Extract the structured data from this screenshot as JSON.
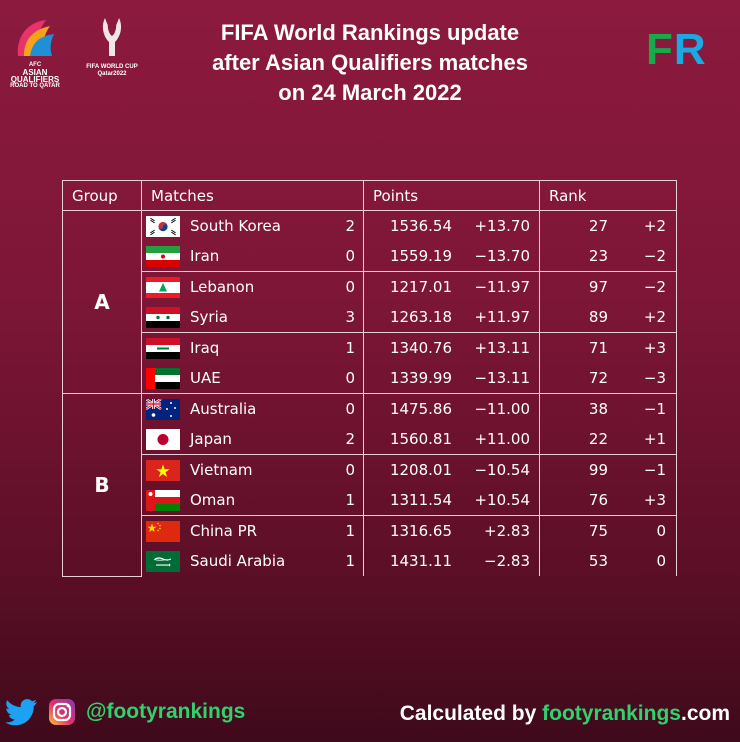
{
  "header": {
    "title_lines": [
      "FIFA World Rankings update",
      "after Asian Qualifiers matches",
      "on 24 March 2022"
    ],
    "afc_logo": {
      "line1": "AFC",
      "line2": "ASIAN",
      "line3": "QUALIFIERS",
      "line4": "ROAD TO QATAR"
    },
    "wc_logo": {
      "line1": "FIFA WORLD CUP",
      "line2": "Qatar2022"
    },
    "fr_logo": {
      "f": "F",
      "r": "R"
    }
  },
  "table": {
    "columns": {
      "group": "Group",
      "matches": "Matches",
      "points": "Points",
      "rank": "Rank"
    },
    "groups": [
      {
        "name": "A",
        "teams": [
          {
            "team": "South Korea",
            "flag": "south-korea",
            "score": "2",
            "points": "1536.54",
            "points_change": "+13.70",
            "rank": "27",
            "rank_change": "+2"
          },
          {
            "team": "Iran",
            "flag": "iran",
            "score": "0",
            "points": "1559.19",
            "points_change": "−13.70",
            "rank": "23",
            "rank_change": "−2"
          },
          {
            "team": "Lebanon",
            "flag": "lebanon",
            "score": "0",
            "points": "1217.01",
            "points_change": "−11.97",
            "rank": "97",
            "rank_change": "−2"
          },
          {
            "team": "Syria",
            "flag": "syria",
            "score": "3",
            "points": "1263.18",
            "points_change": "+11.97",
            "rank": "89",
            "rank_change": "+2"
          },
          {
            "team": "Iraq",
            "flag": "iraq",
            "score": "1",
            "points": "1340.76",
            "points_change": "+13.11",
            "rank": "71",
            "rank_change": "+3"
          },
          {
            "team": "UAE",
            "flag": "uae",
            "score": "0",
            "points": "1339.99",
            "points_change": "−13.11",
            "rank": "72",
            "rank_change": "−3"
          }
        ]
      },
      {
        "name": "B",
        "teams": [
          {
            "team": "Australia",
            "flag": "australia",
            "score": "0",
            "points": "1475.86",
            "points_change": "−11.00",
            "rank": "38",
            "rank_change": "−1"
          },
          {
            "team": "Japan",
            "flag": "japan",
            "score": "2",
            "points": "1560.81",
            "points_change": "+11.00",
            "rank": "22",
            "rank_change": "+1"
          },
          {
            "team": "Vietnam",
            "flag": "vietnam",
            "score": "0",
            "points": "1208.01",
            "points_change": "−10.54",
            "rank": "99",
            "rank_change": "−1"
          },
          {
            "team": "Oman",
            "flag": "oman",
            "score": "1",
            "points": "1311.54",
            "points_change": "+10.54",
            "rank": "76",
            "rank_change": "+3"
          },
          {
            "team": "China PR",
            "flag": "china",
            "score": "1",
            "points": "1316.65",
            "points_change": "+2.83",
            "rank": "75",
            "rank_change": "0"
          },
          {
            "team": "Saudi Arabia",
            "flag": "saudi-arabia",
            "score": "1",
            "points": "1431.11",
            "points_change": "−2.83",
            "rank": "53",
            "rank_change": "0"
          }
        ]
      }
    ]
  },
  "footer": {
    "handle": "@footyrankings",
    "credit_prefix": "Calculated by ",
    "credit_site": "footyrankings",
    "credit_suffix": ".com",
    "icons": [
      "twitter-icon",
      "instagram-icon"
    ]
  },
  "colors": {
    "accent_green": "#2ed36e",
    "background": "#7d1637"
  }
}
